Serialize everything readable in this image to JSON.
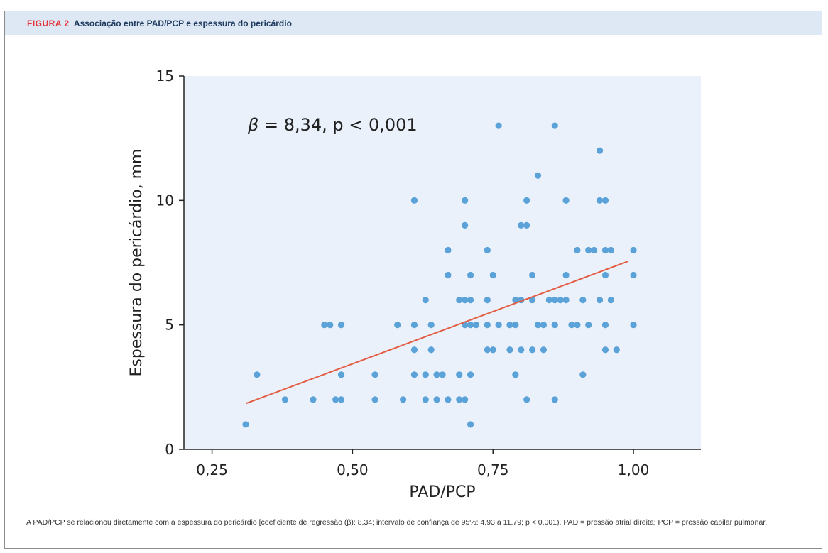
{
  "figure": {
    "label": "FIGURA 2",
    "title": "Associação entre PAD/PCP e espessura do pericárdio",
    "caption": "A PAD/PCP se relacionou diretamente com a espessura do pericárdio [coeficiente de regressão (β): 8,34; intervalo de confiança de 95%: 4,93 a 11,79; p < 0,001). PAD = pressão atrial direita; PCP = pressão capilar pulmonar."
  },
  "colors": {
    "header_bg": "#dde8f4",
    "label": "#e3353a",
    "title": "#1f3a5f",
    "plot_bg": "#eaf1fa",
    "points": "#5aa2d8",
    "regression": "#e35d45",
    "axis": "#222222"
  },
  "chart_data": {
    "type": "scatter",
    "xlabel": "PAD/PCP",
    "ylabel": "Espessura do pericárdio, mm",
    "xlim": [
      0.2,
      1.12
    ],
    "ylim": [
      0,
      15
    ],
    "xticks": [
      0.25,
      0.5,
      0.75,
      1.0
    ],
    "xtick_labels": [
      "0,25",
      "0,50",
      "0,75",
      "1,00"
    ],
    "yticks": [
      0,
      5,
      10,
      15
    ],
    "ytick_labels": [
      "0",
      "5",
      "10",
      "15"
    ],
    "grid": false,
    "annotation": {
      "symbol": "β",
      "text": " = 8,34, p < 0,001"
    },
    "regression": {
      "x": [
        0.31,
        0.99
      ],
      "y": [
        1.84,
        7.55
      ]
    },
    "points": [
      [
        0.31,
        1
      ],
      [
        0.33,
        3
      ],
      [
        0.38,
        2
      ],
      [
        0.43,
        2
      ],
      [
        0.45,
        5
      ],
      [
        0.46,
        5
      ],
      [
        0.47,
        2
      ],
      [
        0.48,
        5
      ],
      [
        0.48,
        3
      ],
      [
        0.48,
        2
      ],
      [
        0.54,
        3
      ],
      [
        0.54,
        2
      ],
      [
        0.58,
        5
      ],
      [
        0.59,
        2
      ],
      [
        0.61,
        10
      ],
      [
        0.61,
        5
      ],
      [
        0.61,
        4
      ],
      [
        0.61,
        3
      ],
      [
        0.63,
        6
      ],
      [
        0.63,
        3
      ],
      [
        0.63,
        2
      ],
      [
        0.64,
        5
      ],
      [
        0.64,
        4
      ],
      [
        0.65,
        3
      ],
      [
        0.65,
        2
      ],
      [
        0.66,
        3
      ],
      [
        0.67,
        8
      ],
      [
        0.67,
        7
      ],
      [
        0.67,
        2
      ],
      [
        0.69,
        6
      ],
      [
        0.69,
        3
      ],
      [
        0.69,
        2
      ],
      [
        0.7,
        10
      ],
      [
        0.7,
        9
      ],
      [
        0.7,
        6
      ],
      [
        0.7,
        5
      ],
      [
        0.7,
        2
      ],
      [
        0.71,
        7
      ],
      [
        0.71,
        6
      ],
      [
        0.71,
        5
      ],
      [
        0.71,
        3
      ],
      [
        0.71,
        1
      ],
      [
        0.72,
        5
      ],
      [
        0.74,
        8
      ],
      [
        0.74,
        6
      ],
      [
        0.74,
        5
      ],
      [
        0.74,
        4
      ],
      [
        0.75,
        7
      ],
      [
        0.75,
        4
      ],
      [
        0.76,
        13
      ],
      [
        0.76,
        5
      ],
      [
        0.78,
        5
      ],
      [
        0.78,
        4
      ],
      [
        0.79,
        6
      ],
      [
        0.79,
        5
      ],
      [
        0.79,
        3
      ],
      [
        0.8,
        9
      ],
      [
        0.8,
        6
      ],
      [
        0.8,
        4
      ],
      [
        0.81,
        10
      ],
      [
        0.81,
        9
      ],
      [
        0.81,
        2
      ],
      [
        0.82,
        7
      ],
      [
        0.82,
        6
      ],
      [
        0.82,
        4
      ],
      [
        0.83,
        11
      ],
      [
        0.83,
        5
      ],
      [
        0.84,
        5
      ],
      [
        0.84,
        4
      ],
      [
        0.85,
        6
      ],
      [
        0.86,
        13
      ],
      [
        0.86,
        6
      ],
      [
        0.86,
        5
      ],
      [
        0.86,
        2
      ],
      [
        0.87,
        6
      ],
      [
        0.88,
        10
      ],
      [
        0.88,
        7
      ],
      [
        0.88,
        6
      ],
      [
        0.89,
        5
      ],
      [
        0.9,
        8
      ],
      [
        0.9,
        5
      ],
      [
        0.91,
        6
      ],
      [
        0.91,
        3
      ],
      [
        0.92,
        8
      ],
      [
        0.92,
        5
      ],
      [
        0.93,
        8
      ],
      [
        0.94,
        12
      ],
      [
        0.94,
        10
      ],
      [
        0.94,
        6
      ],
      [
        0.95,
        10
      ],
      [
        0.95,
        8
      ],
      [
        0.95,
        7
      ],
      [
        0.95,
        5
      ],
      [
        0.95,
        4
      ],
      [
        0.96,
        8
      ],
      [
        0.96,
        6
      ],
      [
        0.97,
        4
      ],
      [
        1.0,
        8
      ],
      [
        1.0,
        7
      ],
      [
        1.0,
        5
      ]
    ]
  }
}
